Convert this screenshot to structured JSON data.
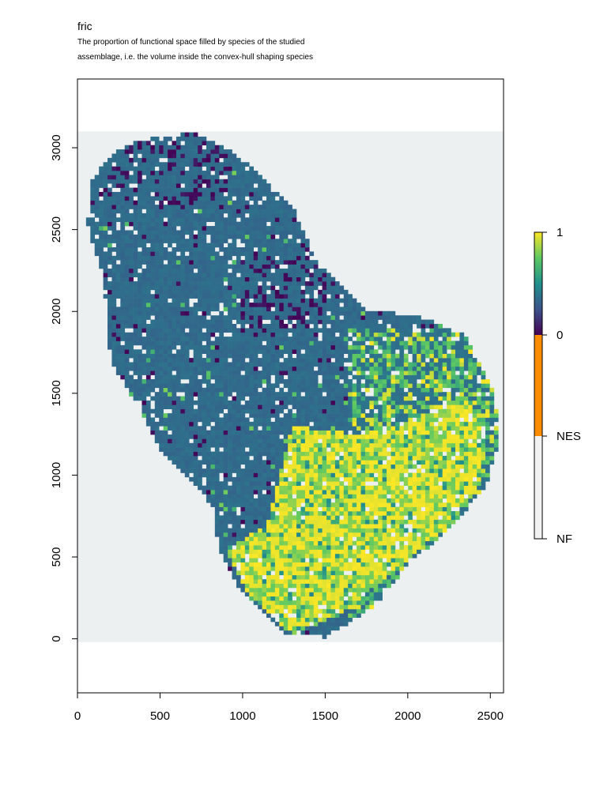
{
  "header": {
    "title": "fric",
    "subtitle_line1": "The proportion of functional space filled by species of the studied",
    "subtitle_line2": "assemblage, i.e. the volume inside the convex-hull shaping species"
  },
  "chart_data": {
    "type": "heatmap",
    "title": "fric",
    "subtitle": "The proportion of functional space filled by species of the studied assemblage, i.e. the volume inside the convex-hull shaping species",
    "xlim": [
      0,
      2580
    ],
    "ylim": [
      -330,
      3420
    ],
    "x_ticks": [
      0,
      500,
      1000,
      1500,
      2000,
      2500
    ],
    "y_ticks": [
      0,
      500,
      1000,
      1500,
      2000,
      2500,
      3000
    ],
    "raster_extent": {
      "x": [
        0,
        2580
      ],
      "y": [
        -20,
        3100
      ]
    },
    "background_color": "#ECF0F1",
    "value_range": [
      0,
      1
    ],
    "colorbar": {
      "labels": [
        "1",
        "0",
        "NES",
        "NF"
      ],
      "segments": [
        {
          "label": "NF",
          "color": "#F2F2F2"
        },
        {
          "label": "NES",
          "color": "#FF8C00"
        },
        {
          "label": "0-1",
          "colors": [
            "#440154",
            "#3B528B",
            "#21908C",
            "#5DC863",
            "#FDE725"
          ]
        }
      ]
    },
    "grid": false,
    "legend_position": "right"
  }
}
